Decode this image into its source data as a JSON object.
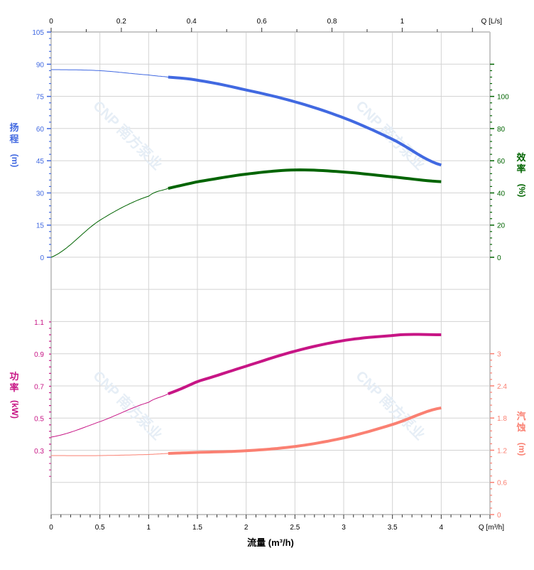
{
  "chart_data": {
    "type": "line",
    "grid": true,
    "watermark": "CNP 南方泵业",
    "x_axis": {
      "label": "流量 (m³/h)",
      "unit_label": "Q [m³/h]",
      "range": [
        0,
        4.5
      ],
      "ticks": [
        "0",
        "0.5",
        "1",
        "1.5",
        "2",
        "2.5",
        "3",
        "3.5",
        "4"
      ]
    },
    "x2_axis": {
      "unit_label": "Q [L/s]",
      "ticks": [
        "0",
        "0.2",
        "0.4",
        "0.6",
        "0.8",
        "1"
      ]
    },
    "axes": {
      "head": {
        "label": "扬程",
        "unit": "(m)",
        "range": [
          0,
          105
        ],
        "ticks": [
          "0",
          "15",
          "30",
          "45",
          "60",
          "75",
          "90",
          "105"
        ],
        "color": "#4169e1"
      },
      "efficiency": {
        "label": "效率",
        "unit": "(%)",
        "range": [
          0,
          100
        ],
        "ticks": [
          "0",
          "20",
          "40",
          "60",
          "80",
          "100"
        ],
        "color": "#006400"
      },
      "power": {
        "label": "功率",
        "unit": "(kW)",
        "range": [
          0.3,
          1.1
        ],
        "ticks": [
          "0.3",
          "0.5",
          "0.7",
          "0.9",
          "1.1"
        ],
        "color": "#c71585"
      },
      "npsh": {
        "label": "汽蚀",
        "unit": "(m)",
        "range": [
          0,
          3
        ],
        "ticks": [
          "0",
          "0.6",
          "1.2",
          "1.8",
          "2.4",
          "3"
        ],
        "color": "#fa8072"
      }
    },
    "operating_range": [
      1.2,
      4
    ],
    "series": [
      {
        "axis": "head",
        "x": [
          0,
          0.5,
          1,
          1.2,
          1.5,
          2,
          2.5,
          3,
          3.5,
          4
        ],
        "y": [
          87.5,
          87,
          85,
          84,
          82.5,
          78,
          72.5,
          65,
          55,
          43
        ]
      },
      {
        "axis": "efficiency",
        "x": [
          0,
          0.5,
          1,
          1.2,
          1.5,
          2,
          2.5,
          3,
          3.5,
          4
        ],
        "y": [
          0,
          23,
          38,
          42.8,
          47,
          51.7,
          54.3,
          53,
          50,
          47
        ]
      },
      {
        "axis": "power",
        "x": [
          0,
          0.5,
          1,
          1.2,
          1.5,
          2,
          2.5,
          3,
          3.5,
          3.7,
          4
        ],
        "y": [
          0.384,
          0.48,
          0.6,
          0.653,
          0.73,
          0.825,
          0.918,
          0.984,
          1.015,
          1.022,
          1.02
        ]
      },
      {
        "axis": "npsh",
        "x": [
          0,
          0.5,
          1,
          1.2,
          1.5,
          2,
          2.5,
          3,
          3.5,
          4
        ],
        "y": [
          1.1,
          1.1,
          1.12,
          1.14,
          1.16,
          1.19,
          1.27,
          1.43,
          1.68,
          1.99
        ]
      }
    ]
  }
}
